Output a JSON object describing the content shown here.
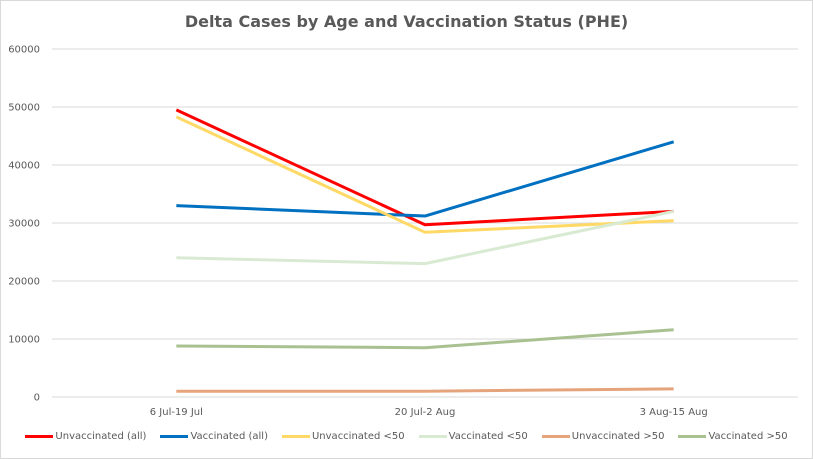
{
  "chart_data": {
    "type": "line",
    "title": "Delta Cases by Age and Vaccination Status (PHE)",
    "xlabel": "",
    "ylabel": "",
    "categories": [
      "6 Jul-19 Jul",
      "20 Jul-2 Aug",
      "3 Aug-15 Aug"
    ],
    "ylim": [
      0,
      60000
    ],
    "yticks": [
      0,
      10000,
      20000,
      30000,
      40000,
      50000,
      60000
    ],
    "grid": true,
    "legend_position": "bottom",
    "series": [
      {
        "name": "Unvaccinated (all)",
        "color": "#ff0000",
        "values": [
          49500,
          29700,
          32000
        ]
      },
      {
        "name": "Vaccinated (all)",
        "color": "#0070c0",
        "values": [
          33000,
          31200,
          44000
        ]
      },
      {
        "name": "Unvaccinated <50",
        "color": "#ffd966",
        "values": [
          48300,
          28400,
          30400
        ]
      },
      {
        "name": "Vaccinated <50",
        "color": "#d9ead3",
        "values": [
          24000,
          23000,
          32000
        ]
      },
      {
        "name": "Unvaccinated >50",
        "color": "#e6a47c",
        "values": [
          1000,
          1000,
          1400
        ]
      },
      {
        "name": "Vaccinated >50",
        "color": "#a9c191",
        "values": [
          8800,
          8500,
          11600
        ]
      }
    ]
  }
}
